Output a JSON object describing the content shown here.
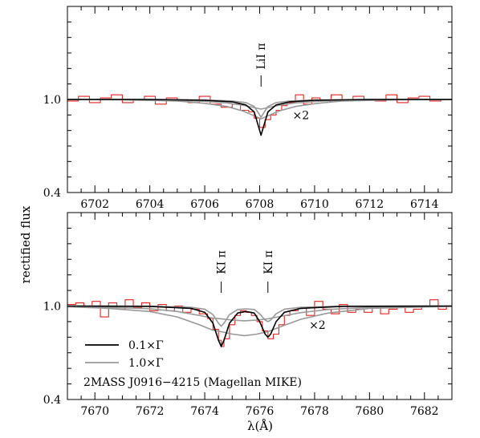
{
  "figure": {
    "ylabel": "rectified flux",
    "xlabel": "λ(Å)"
  },
  "colors": {
    "observed": "#e8231d",
    "model_narrow": "#000000",
    "model_broad": "#999999",
    "frame": "#000000"
  },
  "chart_data": [
    {
      "type": "line",
      "panel": "top",
      "xlim": [
        6701,
        6715
      ],
      "ylim": [
        0.4,
        1.6
      ],
      "x_ticks": [
        6702,
        6704,
        6706,
        6708,
        6710,
        6712,
        6714
      ],
      "x_tick_labels": [
        "6702",
        "6704",
        "6706",
        "6708",
        "6710",
        "6712",
        "6714"
      ],
      "y_ticks": [
        0.4,
        1.0
      ],
      "y_tick_labels": [
        "0.4",
        "1.0"
      ],
      "line_labels": [
        {
          "text": "LiI π",
          "x": 6708.05
        }
      ],
      "annotations": [
        {
          "text": "×2",
          "x": 6709.2,
          "y": 0.9
        }
      ],
      "series": [
        {
          "style": "observed-step",
          "x": [
            6701.0,
            6701.4,
            6701.8,
            6702.2,
            6702.6,
            6703.0,
            6703.4,
            6703.8,
            6704.2,
            6704.6,
            6705.0,
            6705.4,
            6705.8,
            6706.2,
            6706.6,
            6707.0,
            6707.3,
            6707.6,
            6707.8,
            6708.0,
            6708.2,
            6708.4,
            6708.6,
            6708.8,
            6709.0,
            6709.3,
            6709.6,
            6709.9,
            6710.2,
            6710.6,
            6711.0,
            6711.4,
            6711.8,
            6712.2,
            6712.6,
            6713.0,
            6713.4,
            6713.8,
            6714.2,
            6714.6,
            6715.0
          ],
          "y": [
            0.99,
            1.02,
            0.98,
            1.01,
            1.03,
            0.98,
            1.0,
            1.02,
            0.97,
            1.01,
            1.0,
            0.98,
            1.02,
            0.97,
            0.95,
            0.97,
            0.93,
            0.92,
            0.88,
            0.82,
            0.87,
            0.9,
            0.93,
            0.96,
            0.98,
            1.03,
            0.97,
            1.01,
            0.99,
            1.03,
            0.99,
            1.02,
            1.0,
            0.99,
            1.03,
            0.98,
            1.01,
            1.02,
            0.99,
            1.0,
            1.0
          ]
        },
        {
          "name": "0.1×Γ",
          "style": "model-narrow",
          "x": [
            6701.0,
            6704.0,
            6706.0,
            6707.0,
            6707.5,
            6707.8,
            6708.0,
            6708.05,
            6708.1,
            6708.3,
            6708.6,
            6709.1,
            6710.0,
            6712.0,
            6715.0
          ],
          "y": [
            1.0,
            1.0,
            0.995,
            0.985,
            0.965,
            0.92,
            0.8,
            0.77,
            0.8,
            0.92,
            0.965,
            0.985,
            0.995,
            1.0,
            1.0
          ]
        },
        {
          "style": "model-narrow-scaled",
          "x": [
            6701.0,
            6704.0,
            6706.0,
            6707.0,
            6707.5,
            6707.8,
            6708.0,
            6708.05,
            6708.1,
            6708.3,
            6708.6,
            6709.1,
            6710.0,
            6712.0,
            6715.0
          ],
          "y": [
            1.0,
            1.0,
            0.997,
            0.99,
            0.98,
            0.955,
            0.9,
            0.885,
            0.9,
            0.955,
            0.98,
            0.99,
            0.997,
            1.0,
            1.0
          ]
        },
        {
          "name": "1.0×Γ",
          "style": "model-broad",
          "x": [
            6701.0,
            6703.0,
            6705.0,
            6706.0,
            6706.8,
            6707.4,
            6707.8,
            6708.05,
            6708.3,
            6708.7,
            6709.3,
            6710.1,
            6711.0,
            6713.0,
            6715.0
          ],
          "y": [
            1.0,
            0.998,
            0.99,
            0.975,
            0.955,
            0.925,
            0.895,
            0.875,
            0.895,
            0.925,
            0.955,
            0.975,
            0.99,
            0.998,
            1.0
          ]
        },
        {
          "style": "model-broad-scaled",
          "x": [
            6701.0,
            6703.0,
            6705.0,
            6706.0,
            6706.8,
            6707.4,
            6707.8,
            6708.05,
            6708.3,
            6708.7,
            6709.3,
            6710.1,
            6711.0,
            6713.0,
            6715.0
          ],
          "y": [
            1.0,
            0.999,
            0.995,
            0.988,
            0.978,
            0.963,
            0.948,
            0.938,
            0.948,
            0.963,
            0.978,
            0.988,
            0.995,
            0.999,
            1.0
          ]
        }
      ]
    },
    {
      "type": "line",
      "panel": "bottom",
      "xlim": [
        7669,
        7683
      ],
      "ylim": [
        0.4,
        1.6
      ],
      "x_ticks": [
        7670,
        7672,
        7674,
        7676,
        7678,
        7680,
        7682
      ],
      "x_tick_labels": [
        "7670",
        "7672",
        "7674",
        "7676",
        "7678",
        "7680",
        "7682"
      ],
      "y_ticks": [
        0.4,
        1.0
      ],
      "y_tick_labels": [
        "0.4",
        "1.0"
      ],
      "line_labels": [
        {
          "text": "KI π",
          "x": 7674.6
        },
        {
          "text": "KI π",
          "x": 7676.3
        }
      ],
      "annotations": [
        {
          "text": "×2",
          "x": 7677.8,
          "y": 0.88
        }
      ],
      "legend": {
        "position": "bottom-left",
        "entries": [
          "0.1×Γ",
          "1.0×Γ"
        ],
        "caption": "2MASS J0916−4215 (Magellan MIKE)"
      },
      "series": [
        {
          "style": "observed-step",
          "x": [
            7669.0,
            7669.3,
            7669.6,
            7669.9,
            7670.2,
            7670.5,
            7670.8,
            7671.1,
            7671.4,
            7671.7,
            7672.0,
            7672.3,
            7672.6,
            7672.9,
            7673.2,
            7673.5,
            7673.8,
            7674.1,
            7674.3,
            7674.5,
            7674.6,
            7674.7,
            7674.9,
            7675.1,
            7675.3,
            7675.5,
            7675.7,
            7675.9,
            7676.1,
            7676.3,
            7676.5,
            7676.7,
            7676.9,
            7677.1,
            7677.4,
            7677.7,
            7678.0,
            7678.3,
            7678.6,
            7678.9,
            7679.2,
            7679.5,
            7679.8,
            7680.1,
            7680.4,
            7680.7,
            7681.0,
            7681.3,
            7681.6,
            7681.9,
            7682.2,
            7682.5,
            7682.8
          ],
          "y": [
            1.01,
            1.02,
            0.99,
            1.03,
            0.93,
            1.02,
            0.98,
            1.04,
            0.99,
            1.02,
            0.97,
            1.01,
            0.97,
            1.0,
            0.96,
            0.98,
            0.95,
            0.92,
            0.85,
            0.78,
            0.74,
            0.79,
            0.88,
            0.94,
            0.97,
            0.96,
            0.94,
            0.9,
            0.84,
            0.79,
            0.82,
            0.88,
            0.94,
            0.97,
            0.99,
            0.94,
            1.03,
            0.98,
            0.95,
            1.01,
            0.96,
            0.98,
            0.96,
            0.99,
            0.95,
            0.98,
            0.99,
            0.96,
            0.98,
            1.0,
            1.04,
            0.98,
            1.0
          ]
        },
        {
          "name": "0.1×Γ",
          "style": "model-narrow",
          "x": [
            7669.0,
            7672.0,
            7673.5,
            7674.0,
            7674.3,
            7674.5,
            7674.6,
            7674.7,
            7674.9,
            7675.2,
            7675.5,
            7675.8,
            7676.0,
            7676.2,
            7676.3,
            7676.4,
            7676.6,
            7676.9,
            7677.5,
            7679.0,
            7683.0
          ],
          "y": [
            1.0,
            0.998,
            0.985,
            0.96,
            0.89,
            0.78,
            0.74,
            0.78,
            0.89,
            0.955,
            0.965,
            0.955,
            0.9,
            0.82,
            0.8,
            0.82,
            0.9,
            0.96,
            0.985,
            0.998,
            1.0
          ]
        },
        {
          "style": "model-narrow-scaled",
          "x": [
            7669.0,
            7672.0,
            7673.5,
            7674.0,
            7674.3,
            7674.5,
            7674.6,
            7674.7,
            7674.9,
            7675.2,
            7675.5,
            7675.8,
            7676.0,
            7676.2,
            7676.3,
            7676.4,
            7676.6,
            7676.9,
            7677.5,
            7679.0,
            7683.0
          ],
          "y": [
            1.0,
            0.999,
            0.992,
            0.98,
            0.945,
            0.89,
            0.87,
            0.89,
            0.945,
            0.978,
            0.982,
            0.978,
            0.95,
            0.91,
            0.9,
            0.91,
            0.95,
            0.98,
            0.992,
            0.999,
            1.0
          ]
        },
        {
          "name": "1.0×Γ",
          "style": "model-broad",
          "x": [
            7669.0,
            7670.5,
            7672.0,
            7673.0,
            7673.8,
            7674.3,
            7674.6,
            7675.0,
            7675.45,
            7675.9,
            7676.3,
            7676.8,
            7677.5,
            7678.5,
            7680.0,
            7683.0
          ],
          "y": [
            0.995,
            0.985,
            0.965,
            0.93,
            0.88,
            0.845,
            0.835,
            0.82,
            0.81,
            0.82,
            0.835,
            0.87,
            0.915,
            0.955,
            0.985,
            0.998
          ]
        },
        {
          "style": "model-broad-scaled",
          "x": [
            7669.0,
            7670.5,
            7672.0,
            7673.0,
            7673.8,
            7674.3,
            7674.6,
            7675.0,
            7675.45,
            7675.9,
            7676.3,
            7676.8,
            7677.5,
            7678.5,
            7680.0,
            7683.0
          ],
          "y": [
            0.998,
            0.992,
            0.983,
            0.965,
            0.94,
            0.922,
            0.918,
            0.91,
            0.905,
            0.91,
            0.918,
            0.935,
            0.958,
            0.978,
            0.992,
            0.999
          ]
        }
      ]
    }
  ]
}
